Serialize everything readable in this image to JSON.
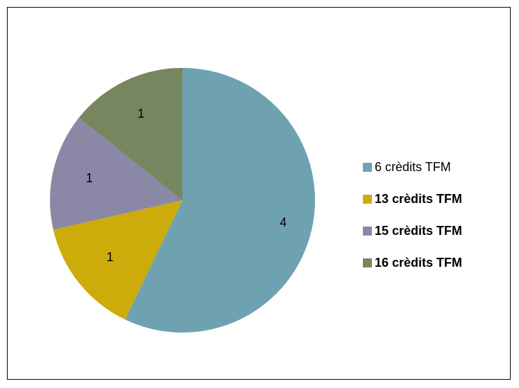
{
  "chart_data": {
    "type": "pie",
    "title": "",
    "categories": [
      "6 crèdits TFM",
      "13 crèdits TFM",
      "15 crèdits TFM",
      "16 crèdits TFM"
    ],
    "values": [
      4,
      1,
      1,
      1
    ],
    "data_labels": [
      "4",
      "1",
      "1",
      "1"
    ],
    "colors": [
      "#6fa2b0",
      "#cdab0b",
      "#8b87a6",
      "#76865f"
    ],
    "legend_bold": [
      false,
      true,
      true,
      true
    ],
    "legend_position": "right",
    "start_angle_deg": 0,
    "direction": "clockwise"
  }
}
